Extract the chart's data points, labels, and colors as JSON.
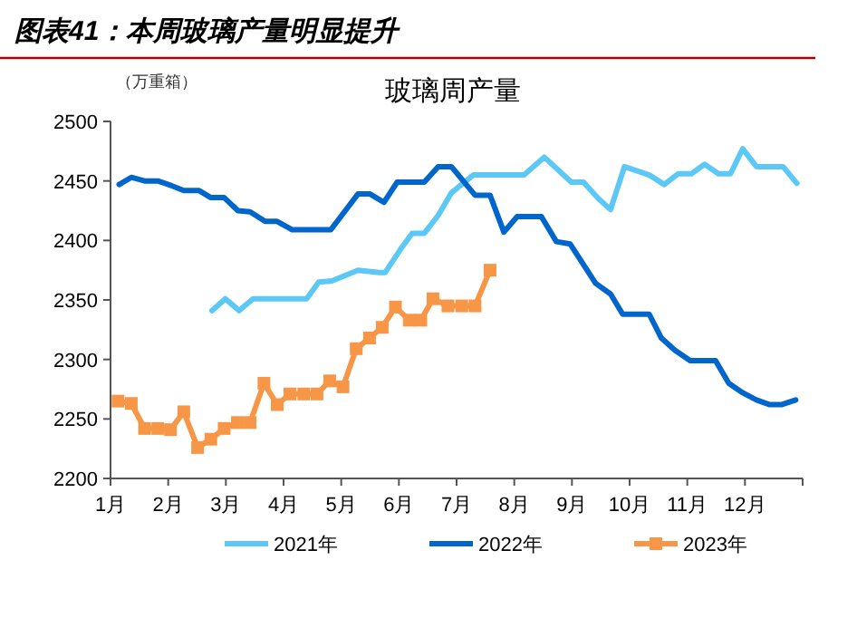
{
  "chart_data": {
    "type": "line",
    "title": "图表41：本周玻璃产量明显提升",
    "subtitle": "玻璃周产量",
    "ylabel": "（万重箱）",
    "xlim": [
      1,
      13
    ],
    "xticks": [
      {
        "value": 1,
        "label": "1月"
      },
      {
        "value": 2,
        "label": "2月"
      },
      {
        "value": 3,
        "label": "3月"
      },
      {
        "value": 4,
        "label": "4月"
      },
      {
        "value": 5,
        "label": "5月"
      },
      {
        "value": 6,
        "label": "6月"
      },
      {
        "value": 7,
        "label": "7月"
      },
      {
        "value": 8,
        "label": "8月"
      },
      {
        "value": 9,
        "label": "9月"
      },
      {
        "value": 10,
        "label": "10月"
      },
      {
        "value": 11,
        "label": "11月"
      },
      {
        "value": 12,
        "label": "12月"
      },
      {
        "value": 13,
        "label": null
      }
    ],
    "ylim": [
      2200,
      2500
    ],
    "yticks": [
      2200,
      2250,
      2300,
      2350,
      2400,
      2450,
      2500
    ],
    "legend": "bottom",
    "line_style": "solid",
    "series": [
      {
        "name": "2021年",
        "color": "#5bc8f5",
        "marker": "none",
        "x": [
          2.76,
          2.99,
          3.23,
          3.47,
          3.94,
          4.4,
          4.61,
          4.84,
          5.29,
          5.66,
          5.76,
          6.02,
          6.23,
          6.44,
          6.68,
          6.91,
          7.29,
          8.17,
          8.52,
          8.99,
          9.2,
          9.46,
          9.67,
          9.91,
          10.34,
          10.6,
          10.84,
          11.07,
          11.3,
          11.54,
          11.75,
          11.96,
          12.2,
          12.66,
          12.9
        ],
        "values": [
          2341,
          2351,
          2341,
          2351,
          2351,
          2351,
          2365,
          2366,
          2375,
          2373,
          2373,
          2392,
          2406,
          2406,
          2421,
          2440,
          2455,
          2455,
          2470,
          2449,
          2449,
          2435,
          2426,
          2462,
          2455,
          2447,
          2456,
          2456,
          2464,
          2456,
          2456,
          2477,
          2462,
          2462,
          2448
        ]
      },
      {
        "name": "2022年",
        "color": "#0066cc",
        "marker": "none",
        "x": [
          1.15,
          1.36,
          1.59,
          1.82,
          2.06,
          2.27,
          2.53,
          2.74,
          2.97,
          3.21,
          3.42,
          3.68,
          3.89,
          4.15,
          4.35,
          4.61,
          4.82,
          5.29,
          5.5,
          5.74,
          5.97,
          6.21,
          6.44,
          6.68,
          6.91,
          7.32,
          7.58,
          7.82,
          8.05,
          8.47,
          8.73,
          8.97,
          9.41,
          9.67,
          9.88,
          10.34,
          10.55,
          10.78,
          11.05,
          11.49,
          11.72,
          11.96,
          12.2,
          12.43,
          12.63,
          12.88
        ],
        "values": [
          2447,
          2453,
          2450,
          2450,
          2446,
          2442,
          2442,
          2436,
          2436,
          2425,
          2424,
          2416,
          2416,
          2409,
          2409,
          2409,
          2409,
          2439,
          2439,
          2432,
          2449,
          2449,
          2449,
          2462,
          2462,
          2438,
          2438,
          2407,
          2420,
          2420,
          2399,
          2397,
          2364,
          2355,
          2338,
          2338,
          2318,
          2308,
          2299,
          2299,
          2280,
          2272,
          2266,
          2262,
          2262,
          2266
        ]
      },
      {
        "name": "2023年",
        "color": "#f79646",
        "marker": "square",
        "x": [
          1.13,
          1.36,
          1.59,
          1.82,
          2.04,
          2.27,
          2.51,
          2.74,
          2.97,
          3.2,
          3.42,
          3.66,
          3.89,
          4.11,
          4.35,
          4.58,
          4.8,
          5.03,
          5.26,
          5.49,
          5.71,
          5.94,
          6.18,
          6.38,
          6.59,
          6.85,
          7.09,
          7.32,
          7.58
        ],
        "values": [
          2265,
          2263,
          2242,
          2242,
          2241,
          2256,
          2226,
          2233,
          2242,
          2247,
          2247,
          2280,
          2262,
          2271,
          2271,
          2271,
          2282,
          2277,
          2309,
          2318,
          2327,
          2344,
          2333,
          2333,
          2351,
          2345,
          2345,
          2345,
          2375
        ]
      }
    ]
  }
}
